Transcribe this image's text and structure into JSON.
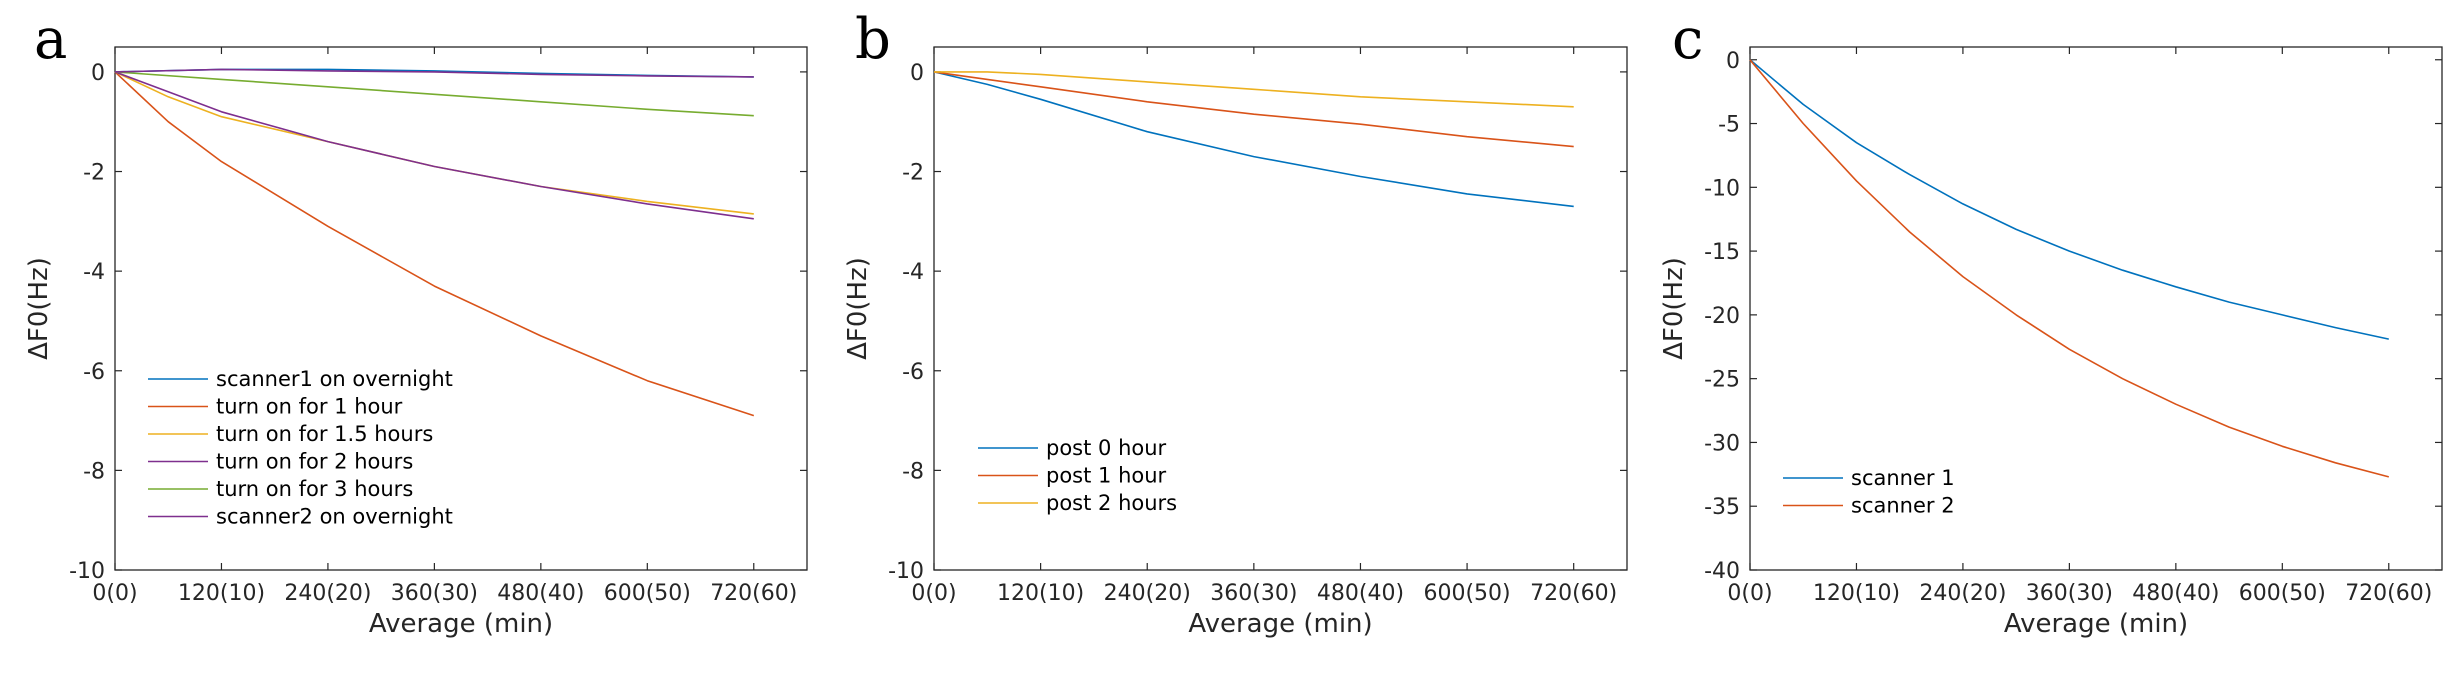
{
  "chart_data": [
    {
      "panel": "a",
      "type": "line",
      "xlabel": "Average (min)",
      "ylabel": "ΔF0(Hz)",
      "xlim": [
        0,
        780
      ],
      "ylim": [
        -10,
        0.5
      ],
      "xticks": [
        {
          "v": 0,
          "label": "0(0)"
        },
        {
          "v": 120,
          "label": "120(10)"
        },
        {
          "v": 240,
          "label": "240(20)"
        },
        {
          "v": 360,
          "label": "360(30)"
        },
        {
          "v": 480,
          "label": "480(40)"
        },
        {
          "v": 600,
          "label": "600(50)"
        },
        {
          "v": 720,
          "label": "720(60)"
        }
      ],
      "yticks": [
        {
          "v": 0,
          "label": "0"
        },
        {
          "v": -2,
          "label": "-2"
        },
        {
          "v": -4,
          "label": "-4"
        },
        {
          "v": -6,
          "label": "-6"
        },
        {
          "v": -8,
          "label": "-8"
        },
        {
          "v": -10,
          "label": "-10"
        }
      ],
      "legend_position": "bottom-left",
      "series": [
        {
          "name": "scanner1 on overnight",
          "color": "#0072BD",
          "x": [
            0,
            120,
            240,
            360,
            480,
            600,
            720
          ],
          "y": [
            0,
            0.05,
            0.05,
            0.02,
            -0.03,
            -0.07,
            -0.1
          ]
        },
        {
          "name": "turn on for 1 hour",
          "color": "#D95319",
          "x": [
            0,
            60,
            120,
            240,
            360,
            480,
            600,
            720
          ],
          "y": [
            0,
            -1.0,
            -1.8,
            -3.1,
            -4.3,
            -5.3,
            -6.2,
            -6.9
          ]
        },
        {
          "name": "turn on for 1.5 hours",
          "color": "#EDB120",
          "x": [
            0,
            60,
            120,
            240,
            360,
            480,
            600,
            720
          ],
          "y": [
            0,
            -0.5,
            -0.9,
            -1.4,
            -1.9,
            -2.3,
            -2.6,
            -2.85
          ]
        },
        {
          "name": "turn on for 2 hours",
          "color": "#7E2F8E",
          "x": [
            0,
            60,
            120,
            240,
            360,
            480,
            600,
            720
          ],
          "y": [
            0,
            -0.4,
            -0.8,
            -1.4,
            -1.9,
            -2.3,
            -2.65,
            -2.95
          ]
        },
        {
          "name": "turn on for 3 hours",
          "color": "#77AC30",
          "x": [
            0,
            120,
            240,
            360,
            480,
            600,
            720
          ],
          "y": [
            0,
            -0.15,
            -0.3,
            -0.45,
            -0.6,
            -0.75,
            -0.88
          ]
        },
        {
          "name": "scanner2 on overnight",
          "color": "#7E2F8E",
          "x": [
            0,
            120,
            240,
            360,
            480,
            600,
            720
          ],
          "y": [
            0,
            0.05,
            0.02,
            0.0,
            -0.05,
            -0.08,
            -0.1
          ]
        }
      ]
    },
    {
      "panel": "b",
      "type": "line",
      "xlabel": "Average (min)",
      "ylabel": "ΔF0(Hz)",
      "xlim": [
        0,
        780
      ],
      "ylim": [
        -10,
        0.5
      ],
      "xticks": [
        {
          "v": 0,
          "label": "0(0)"
        },
        {
          "v": 120,
          "label": "120(10)"
        },
        {
          "v": 240,
          "label": "240(20)"
        },
        {
          "v": 360,
          "label": "360(30)"
        },
        {
          "v": 480,
          "label": "480(40)"
        },
        {
          "v": 600,
          "label": "600(50)"
        },
        {
          "v": 720,
          "label": "720(60)"
        }
      ],
      "yticks": [
        {
          "v": 0,
          "label": "0"
        },
        {
          "v": -2,
          "label": "-2"
        },
        {
          "v": -4,
          "label": "-4"
        },
        {
          "v": -6,
          "label": "-6"
        },
        {
          "v": -8,
          "label": "-8"
        },
        {
          "v": -10,
          "label": "-10"
        }
      ],
      "legend_position": "bottom-left",
      "series": [
        {
          "name": "post 0 hour",
          "color": "#0072BD",
          "x": [
            0,
            60,
            120,
            240,
            360,
            480,
            600,
            720
          ],
          "y": [
            0,
            -0.25,
            -0.55,
            -1.2,
            -1.7,
            -2.1,
            -2.45,
            -2.7
          ]
        },
        {
          "name": "post 1 hour",
          "color": "#D95319",
          "x": [
            0,
            60,
            120,
            240,
            360,
            480,
            600,
            720
          ],
          "y": [
            0,
            -0.15,
            -0.3,
            -0.6,
            -0.85,
            -1.05,
            -1.3,
            -1.5
          ]
        },
        {
          "name": "post 2 hours",
          "color": "#EDB120",
          "x": [
            0,
            60,
            120,
            240,
            360,
            480,
            600,
            720
          ],
          "y": [
            0,
            0.0,
            -0.05,
            -0.2,
            -0.35,
            -0.5,
            -0.6,
            -0.7
          ]
        }
      ]
    },
    {
      "panel": "c",
      "type": "line",
      "xlabel": "Average (min)",
      "ylabel": "ΔF0(Hz)",
      "xlim": [
        0,
        780
      ],
      "ylim": [
        -40,
        1
      ],
      "xticks": [
        {
          "v": 0,
          "label": "0(0)"
        },
        {
          "v": 120,
          "label": "120(10)"
        },
        {
          "v": 240,
          "label": "240(20)"
        },
        {
          "v": 360,
          "label": "360(30)"
        },
        {
          "v": 480,
          "label": "480(40)"
        },
        {
          "v": 600,
          "label": "600(50)"
        },
        {
          "v": 720,
          "label": "720(60)"
        }
      ],
      "yticks": [
        {
          "v": 0,
          "label": "0"
        },
        {
          "v": -5,
          "label": "-5"
        },
        {
          "v": -10,
          "label": "-10"
        },
        {
          "v": -15,
          "label": "-15"
        },
        {
          "v": -20,
          "label": "-20"
        },
        {
          "v": -25,
          "label": "-25"
        },
        {
          "v": -30,
          "label": "-30"
        },
        {
          "v": -35,
          "label": "-35"
        },
        {
          "v": -40,
          "label": "-40"
        }
      ],
      "legend_position": "bottom-left",
      "series": [
        {
          "name": "scanner 1",
          "color": "#0072BD",
          "x": [
            0,
            60,
            120,
            180,
            240,
            300,
            360,
            420,
            480,
            540,
            600,
            660,
            720
          ],
          "y": [
            0,
            -3.5,
            -6.5,
            -9.0,
            -11.3,
            -13.3,
            -15.0,
            -16.5,
            -17.8,
            -19.0,
            -20.0,
            -21.0,
            -21.9
          ]
        },
        {
          "name": "scanner 2",
          "color": "#D95319",
          "x": [
            0,
            60,
            120,
            180,
            240,
            300,
            360,
            420,
            480,
            540,
            600,
            660,
            720
          ],
          "y": [
            0,
            -5.0,
            -9.5,
            -13.5,
            -17.0,
            -20.0,
            -22.7,
            -25.0,
            -27.0,
            -28.8,
            -30.3,
            -31.6,
            -32.7
          ]
        }
      ]
    }
  ],
  "panels": [
    {
      "letter": "a"
    },
    {
      "letter": "b"
    },
    {
      "letter": "c"
    }
  ]
}
